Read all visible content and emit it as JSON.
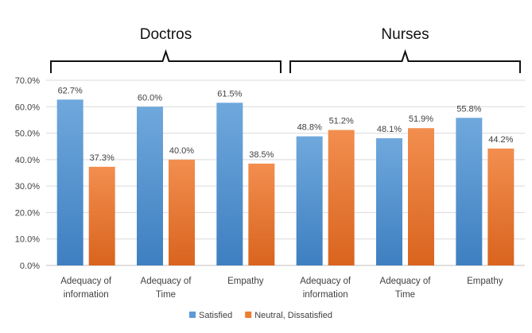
{
  "chart_data": {
    "type": "bar",
    "groups": [
      {
        "label": "Doctros",
        "categories": [
          0,
          1,
          2
        ]
      },
      {
        "label": "Nurses",
        "categories": [
          3,
          4,
          5
        ]
      }
    ],
    "categories": [
      [
        "Adequacy of",
        "information"
      ],
      [
        "Adequacy of",
        "Time"
      ],
      [
        "Empathy"
      ],
      [
        "Adequacy of",
        "information"
      ],
      [
        "Adequacy of",
        "Time"
      ],
      [
        "Empathy"
      ]
    ],
    "series": [
      {
        "name": "Satisfied",
        "color": "#5B9BD5",
        "values": [
          62.7,
          60.0,
          61.5,
          48.8,
          48.1,
          55.8
        ],
        "labels": [
          "62.7%",
          "60.0%",
          "61.5%",
          "48.8%",
          "48.1%",
          "55.8%"
        ]
      },
      {
        "name": "Neutral, Dissatisfied",
        "color": "#ED7D31",
        "values": [
          37.3,
          40.0,
          38.5,
          51.2,
          51.9,
          44.2
        ],
        "labels": [
          "37.3%",
          "40.0%",
          "38.5%",
          "51.2%",
          "51.9%",
          "44.2%"
        ]
      }
    ],
    "yticks": [
      "0.0%",
      "10.0%",
      "20.0%",
      "30.0%",
      "40.0%",
      "50.0%",
      "60.0%",
      "70.0%"
    ],
    "ylim": [
      0,
      70
    ],
    "grid": true,
    "legend": "bottom"
  }
}
